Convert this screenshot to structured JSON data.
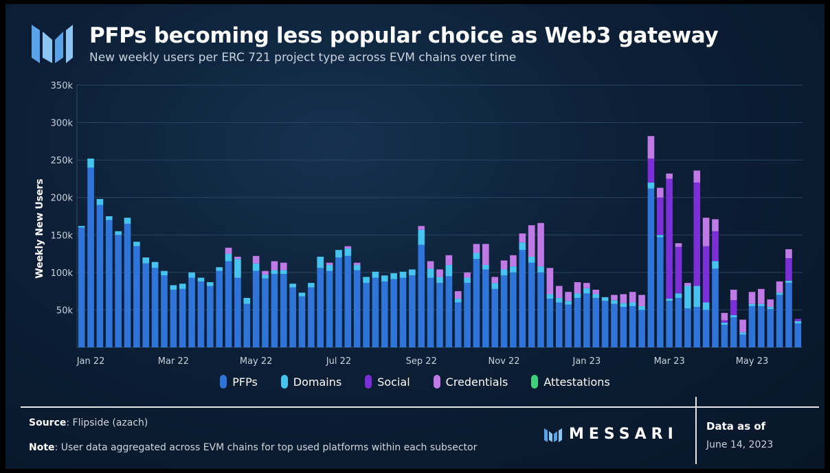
{
  "header": {
    "title": "PFPs becoming less popular choice as Web3 gateway",
    "subtitle": "New weekly users per ERC 721 project type across EVM chains over time"
  },
  "footer": {
    "source_label": "Source",
    "source_value": ": Flipside (azach)",
    "note_label": "Note",
    "note_value": ": User data aggregated across EVM chains for top used platforms within each subsector",
    "brand": "MESSARI",
    "data_as_of_label": "Data as of",
    "data_as_of_date": "June 14, 2023"
  },
  "colors": {
    "PFPs": "#2f74d8",
    "Domains": "#46c3ee",
    "Social": "#7b2fd6",
    "Credentials": "#c07ae6",
    "Attestations": "#3fd07a",
    "grid": "#2a4562",
    "text": "#c9d3df"
  },
  "chart_data": {
    "type": "bar",
    "stacked": true,
    "ylabel": "Weekly New Users",
    "xlabel": "",
    "ylim": [
      0,
      350000
    ],
    "yticks": [
      {
        "value": 50000,
        "label": "50k"
      },
      {
        "value": 100000,
        "label": "100k"
      },
      {
        "value": 150000,
        "label": "150k"
      },
      {
        "value": 200000,
        "label": "200k"
      },
      {
        "value": 250000,
        "label": "250k"
      },
      {
        "value": 300000,
        "label": "300k"
      },
      {
        "value": 350000,
        "label": "350k"
      }
    ],
    "xticks": [
      {
        "index": 1,
        "label": "Jan 22"
      },
      {
        "index": 10,
        "label": "Mar 22"
      },
      {
        "index": 19,
        "label": "May 22"
      },
      {
        "index": 28,
        "label": "Jul 22"
      },
      {
        "index": 37,
        "label": "Sep 22"
      },
      {
        "index": 46,
        "label": "Nov 22"
      },
      {
        "index": 55,
        "label": "Jan 23"
      },
      {
        "index": 64,
        "label": "Mar 23"
      },
      {
        "index": 73,
        "label": "May 23"
      }
    ],
    "grid": true,
    "legend_position": "bottom",
    "series": [
      {
        "name": "PFPs",
        "values": [
          160000,
          240000,
          190000,
          170000,
          150000,
          165000,
          135000,
          112000,
          106000,
          96000,
          77000,
          78000,
          93000,
          88000,
          82000,
          102000,
          115000,
          93000,
          58000,
          102000,
          92000,
          98000,
          98000,
          80000,
          68000,
          80000,
          106000,
          102000,
          120000,
          122000,
          103000,
          86000,
          93000,
          88000,
          91000,
          93000,
          96000,
          137000,
          93000,
          86000,
          95000,
          60000,
          86000,
          118000,
          104000,
          78000,
          96000,
          100000,
          130000,
          113000,
          100000,
          65000,
          60000,
          57000,
          66000,
          72000,
          66000,
          62000,
          58000,
          54000,
          55000,
          50000,
          212000,
          147000,
          62000,
          66000,
          52000,
          54000,
          50000,
          105000,
          30000,
          40000,
          17000,
          55000,
          55000,
          51000,
          70000,
          86000,
          32000
        ]
      },
      {
        "name": "Domains",
        "values": [
          2000,
          12000,
          8000,
          5000,
          5000,
          8000,
          6000,
          8000,
          8000,
          6000,
          6000,
          7000,
          7000,
          5000,
          5000,
          5000,
          10000,
          25000,
          8000,
          10000,
          5000,
          5000,
          5000,
          5000,
          5000,
          6000,
          15000,
          8000,
          10000,
          10000,
          7000,
          8000,
          8000,
          8000,
          8000,
          8000,
          8000,
          20000,
          12000,
          8000,
          15000,
          5000,
          7000,
          8000,
          6000,
          8000,
          8000,
          8000,
          10000,
          8000,
          8000,
          6000,
          6000,
          5000,
          6000,
          7000,
          5000,
          5000,
          5000,
          5000,
          5000,
          5000,
          8000,
          3000,
          3000,
          6000,
          30000,
          28000,
          10000,
          10000,
          3000,
          3000,
          3000,
          3000,
          3000,
          3000,
          3000,
          3000,
          3000
        ]
      },
      {
        "name": "Social",
        "values": [
          0,
          0,
          0,
          0,
          0,
          0,
          0,
          0,
          0,
          0,
          0,
          0,
          0,
          0,
          0,
          0,
          0,
          0,
          0,
          0,
          0,
          0,
          0,
          0,
          0,
          0,
          0,
          0,
          0,
          0,
          0,
          0,
          0,
          0,
          0,
          0,
          0,
          0,
          0,
          0,
          0,
          0,
          0,
          0,
          0,
          0,
          0,
          0,
          0,
          0,
          0,
          0,
          0,
          0,
          0,
          0,
          0,
          0,
          0,
          0,
          0,
          0,
          32000,
          50000,
          160000,
          62000,
          0,
          138000,
          75000,
          40000,
          3000,
          20000,
          0,
          0,
          0,
          0,
          0,
          30000,
          3000
        ]
      },
      {
        "name": "Credentials",
        "values": [
          0,
          0,
          0,
          0,
          0,
          0,
          0,
          0,
          0,
          0,
          0,
          0,
          0,
          0,
          0,
          0,
          8000,
          3000,
          0,
          10000,
          5000,
          12000,
          10000,
          0,
          0,
          0,
          0,
          3000,
          0,
          3000,
          3000,
          0,
          0,
          0,
          0,
          0,
          0,
          5000,
          10000,
          10000,
          13000,
          10000,
          7000,
          12000,
          28000,
          8000,
          12000,
          15000,
          12000,
          42000,
          58000,
          35000,
          16000,
          12000,
          15000,
          7000,
          6000,
          0,
          7000,
          12000,
          14000,
          15000,
          30000,
          13000,
          7000,
          5000,
          4000,
          16000,
          38000,
          16000,
          10000,
          14000,
          17000,
          16000,
          20000,
          10000,
          15000,
          12000,
          0
        ]
      },
      {
        "name": "Attestations",
        "values": [
          0,
          0,
          0,
          0,
          0,
          0,
          0,
          0,
          0,
          0,
          0,
          0,
          0,
          0,
          0,
          0,
          0,
          0,
          0,
          0,
          0,
          0,
          0,
          0,
          0,
          0,
          0,
          0,
          0,
          0,
          0,
          0,
          0,
          0,
          0,
          0,
          0,
          0,
          0,
          0,
          0,
          0,
          0,
          0,
          0,
          0,
          0,
          0,
          0,
          0,
          0,
          0,
          0,
          0,
          0,
          0,
          0,
          0,
          0,
          0,
          0,
          0,
          0,
          0,
          0,
          0,
          0,
          0,
          0,
          0,
          0,
          0,
          0,
          0,
          0,
          0,
          0,
          0,
          0
        ]
      }
    ]
  }
}
